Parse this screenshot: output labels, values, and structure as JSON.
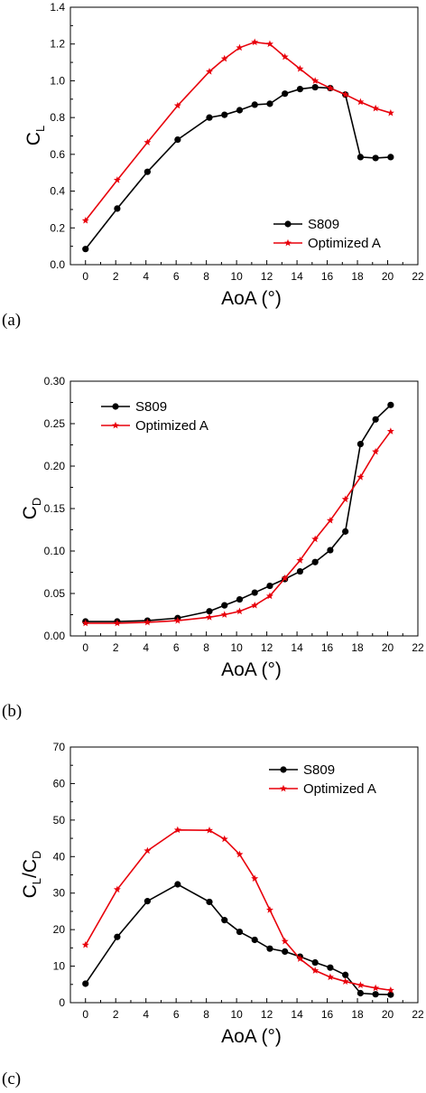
{
  "chart_data": [
    {
      "type": "line",
      "panel_label": "(a)",
      "xlabel": "AoA (°)",
      "ylabel": {
        "main": "C",
        "sub": "L",
        "main2": "",
        "sub2": ""
      },
      "xlim": [
        -1,
        22
      ],
      "ylim": [
        0.0,
        1.4
      ],
      "xticks": [
        0,
        2,
        4,
        6,
        8,
        10,
        12,
        14,
        16,
        18,
        20,
        22
      ],
      "yticks": [
        0.0,
        0.2,
        0.4,
        0.6,
        0.8,
        1.0,
        1.2,
        1.4
      ],
      "ytick_decimals": 1,
      "legend_position": "bottom-right",
      "series": [
        {
          "name": "S809",
          "color": "#000000",
          "marker": "circle",
          "x": [
            0,
            2.1,
            4.1,
            6.1,
            8.2,
            9.2,
            10.2,
            11.2,
            12.2,
            13.2,
            14.2,
            15.2,
            16.2,
            17.2,
            18.2,
            19.2,
            20.2
          ],
          "y": [
            0.085,
            0.305,
            0.505,
            0.68,
            0.8,
            0.815,
            0.84,
            0.87,
            0.875,
            0.93,
            0.955,
            0.965,
            0.96,
            0.925,
            0.585,
            0.58,
            0.585
          ]
        },
        {
          "name": "Optimized A",
          "color": "#e8000b",
          "marker": "star",
          "x": [
            0,
            2.1,
            4.1,
            6.1,
            8.2,
            9.2,
            10.2,
            11.2,
            12.2,
            13.2,
            14.2,
            15.2,
            16.2,
            17.2,
            18.2,
            19.2,
            20.2
          ],
          "y": [
            0.24,
            0.46,
            0.665,
            0.865,
            1.05,
            1.12,
            1.18,
            1.21,
            1.2,
            1.13,
            1.065,
            1.0,
            0.96,
            0.925,
            0.885,
            0.85,
            0.825
          ]
        }
      ]
    },
    {
      "type": "line",
      "panel_label": "(b)",
      "xlabel": "AoA (°)",
      "ylabel": {
        "main": "C",
        "sub": "D",
        "main2": "",
        "sub2": ""
      },
      "xlim": [
        -1,
        22
      ],
      "ylim": [
        0.0,
        0.3
      ],
      "xticks": [
        0,
        2,
        4,
        6,
        8,
        10,
        12,
        14,
        16,
        18,
        20,
        22
      ],
      "yticks": [
        0.0,
        0.05,
        0.1,
        0.15,
        0.2,
        0.25,
        0.3
      ],
      "ytick_decimals": 2,
      "legend_position": "top-left",
      "series": [
        {
          "name": "S809",
          "color": "#000000",
          "marker": "circle",
          "x": [
            0,
            2.1,
            4.1,
            6.1,
            8.2,
            9.2,
            10.2,
            11.2,
            12.2,
            13.2,
            14.2,
            15.2,
            16.2,
            17.2,
            18.2,
            19.2,
            20.2
          ],
          "y": [
            0.017,
            0.017,
            0.018,
            0.021,
            0.029,
            0.036,
            0.043,
            0.051,
            0.059,
            0.067,
            0.076,
            0.087,
            0.101,
            0.123,
            0.226,
            0.255,
            0.272
          ]
        },
        {
          "name": "Optimized A",
          "color": "#e8000b",
          "marker": "star",
          "x": [
            0,
            2.1,
            4.1,
            6.1,
            8.2,
            9.2,
            10.2,
            11.2,
            12.2,
            13.2,
            14.2,
            15.2,
            16.2,
            17.2,
            18.2,
            19.2,
            20.2
          ],
          "y": [
            0.015,
            0.015,
            0.016,
            0.018,
            0.022,
            0.025,
            0.029,
            0.036,
            0.047,
            0.068,
            0.089,
            0.114,
            0.136,
            0.161,
            0.187,
            0.217,
            0.241
          ]
        }
      ]
    },
    {
      "type": "line",
      "panel_label": "(c)",
      "xlabel": "AoA (°)",
      "ylabel": {
        "main": "C",
        "sub": "L",
        "main2": "/C",
        "sub2": "D"
      },
      "xlim": [
        -1,
        22
      ],
      "ylim": [
        0,
        70
      ],
      "xticks": [
        0,
        2,
        4,
        6,
        8,
        10,
        12,
        14,
        16,
        18,
        20,
        22
      ],
      "yticks": [
        0,
        10,
        20,
        30,
        40,
        50,
        60,
        70
      ],
      "ytick_decimals": 0,
      "legend_position": "top-right",
      "series": [
        {
          "name": "S809",
          "color": "#000000",
          "marker": "circle",
          "x": [
            0,
            2.1,
            4.1,
            6.1,
            8.2,
            9.2,
            10.2,
            11.2,
            12.2,
            13.2,
            14.2,
            15.2,
            16.2,
            17.2,
            18.2,
            19.2,
            20.2
          ],
          "y": [
            5.2,
            18.0,
            27.8,
            32.4,
            27.6,
            22.6,
            19.4,
            17.2,
            14.8,
            14.0,
            12.6,
            11.0,
            9.6,
            7.6,
            2.6,
            2.3,
            2.2
          ]
        },
        {
          "name": "Optimized A",
          "color": "#e8000b",
          "marker": "star",
          "x": [
            0,
            2.1,
            4.1,
            6.1,
            8.2,
            9.2,
            10.2,
            11.2,
            12.2,
            13.2,
            14.2,
            15.2,
            16.2,
            17.2,
            18.2,
            19.2,
            20.2
          ],
          "y": [
            15.8,
            31.0,
            41.6,
            47.3,
            47.2,
            44.8,
            40.6,
            34.0,
            25.4,
            16.8,
            12.0,
            8.8,
            7.0,
            5.8,
            4.8,
            4.0,
            3.4
          ]
        }
      ]
    }
  ]
}
